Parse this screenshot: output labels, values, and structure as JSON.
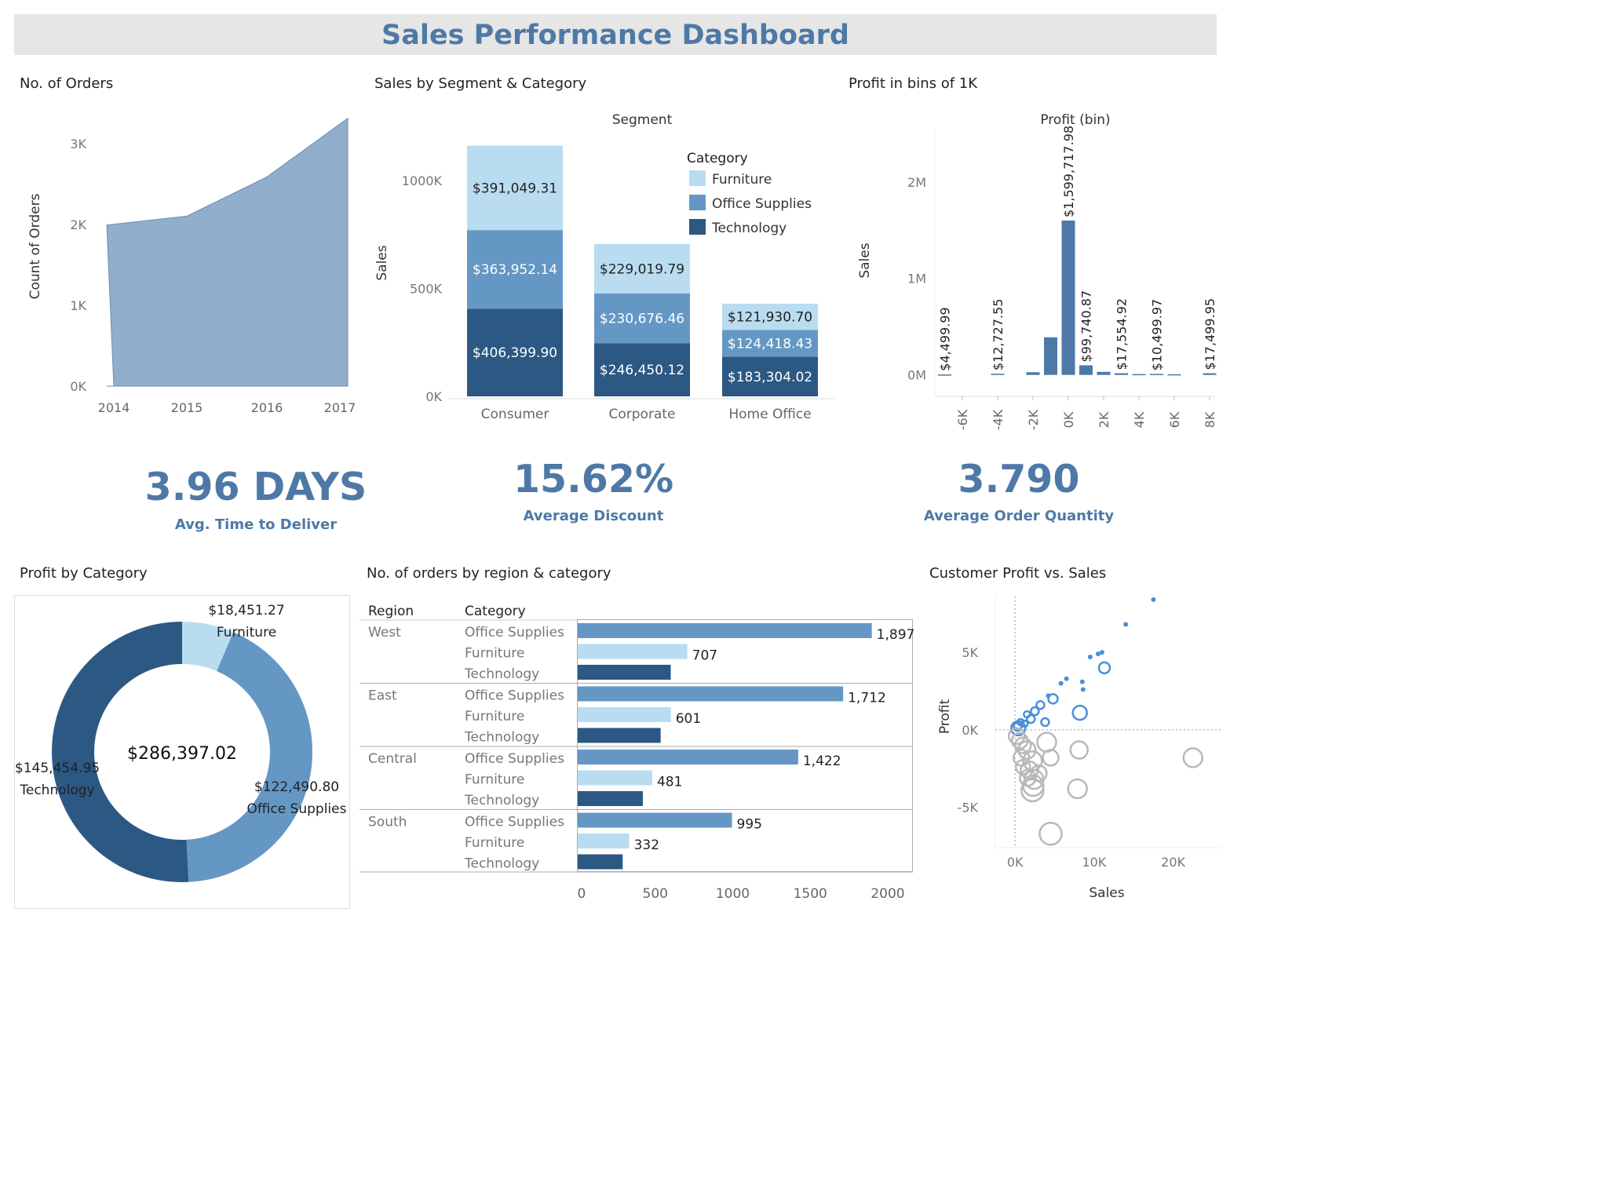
{
  "dashboard": {
    "title": "Sales Performance Dashboard",
    "colors": {
      "header_bg": "#e6e6e6",
      "accent": "#4e79a7",
      "furniture": "#b9dcf0",
      "office_supplies": "#6497c4",
      "technology": "#2c5884",
      "area": "#91aecd",
      "positive": "#4a90d9",
      "negative": "#b8b8b8"
    }
  },
  "kpis": {
    "delivery": {
      "value": "3.96 DAYS",
      "label": "Avg. Time to Deliver"
    },
    "discount": {
      "value": "15.62%",
      "label": "Average Discount"
    },
    "quantity": {
      "value": "3.790",
      "label": "Average Order Quantity"
    }
  },
  "chart_data": [
    {
      "id": "orders",
      "panel_title": "No. of Orders",
      "type": "area",
      "x": [
        "2014",
        "2015",
        "2016",
        "2017"
      ],
      "values": [
        1993,
        2102,
        2587,
        3312
      ],
      "ylabel": "Count of Orders",
      "ylim": [
        0,
        3300
      ],
      "y_ticks": [
        {
          "value": 0,
          "label": "0K"
        },
        {
          "value": 1000,
          "label": "1K"
        },
        {
          "value": 2000,
          "label": "2K"
        },
        {
          "value": 3000,
          "label": "3K"
        }
      ]
    },
    {
      "id": "segment",
      "panel_title": "Sales by Segment & Category",
      "type": "bar",
      "stacked": true,
      "title": "Segment",
      "ylabel": "Sales",
      "ylim": [
        0,
        1200000
      ],
      "y_ticks": [
        {
          "value": 0,
          "label": "0K"
        },
        {
          "value": 500000,
          "label": "500K"
        },
        {
          "value": 1000000,
          "label": "1000K"
        }
      ],
      "categories": [
        "Consumer",
        "Corporate",
        "Home Office"
      ],
      "legend_title": "Category",
      "legend_position": "top-right",
      "series": [
        {
          "name": "Technology",
          "color": "#2c5884",
          "values": [
            406399.9,
            246450.12,
            183304.02
          ],
          "labels": [
            "$406,399.90",
            "$246,450.12",
            "$183,304.02"
          ]
        },
        {
          "name": "Office Supplies",
          "color": "#6497c4",
          "values": [
            363952.14,
            230676.46,
            124418.43
          ],
          "labels": [
            "$363,952.14",
            "$230,676.46",
            "$124,418.43"
          ]
        },
        {
          "name": "Furniture",
          "color": "#b9dcf0",
          "values": [
            391049.31,
            229019.79,
            121930.7
          ],
          "labels": [
            "$391,049.31",
            "$229,019.79",
            "$121,930.70"
          ]
        }
      ]
    },
    {
      "id": "bins",
      "panel_title": "Profit in bins of 1K",
      "type": "bar",
      "title": "Profit (bin)",
      "ylabel": "Sales",
      "ylim": [
        -100000,
        2600000
      ],
      "y_ticks": [
        {
          "value": 0,
          "label": "0M"
        },
        {
          "value": 1000000,
          "label": "1M"
        },
        {
          "value": 2000000,
          "label": "2M"
        }
      ],
      "x_ticks": [
        {
          "value": -6,
          "label": "-6K"
        },
        {
          "value": -4,
          "label": "-4K"
        },
        {
          "value": -2,
          "label": "-2K"
        },
        {
          "value": 0,
          "label": "0K"
        },
        {
          "value": 2,
          "label": "2K"
        },
        {
          "value": 4,
          "label": "4K"
        },
        {
          "value": 6,
          "label": "6K"
        },
        {
          "value": 8,
          "label": "8K"
        }
      ],
      "bins": [
        {
          "x": -7,
          "value": 4499.99,
          "label": "$4,499.99"
        },
        {
          "x": -4,
          "value": 12727.55,
          "label": "$12,727.55"
        },
        {
          "x": -2,
          "value": 28000
        },
        {
          "x": -1,
          "value": 390000
        },
        {
          "x": 0,
          "value": 1599717.98,
          "label": "$1,599,717.98"
        },
        {
          "x": 1,
          "value": 99740.87,
          "label": "$99,740.87"
        },
        {
          "x": 2,
          "value": 32000
        },
        {
          "x": 3,
          "value": 17554.92,
          "label": "$17,554.92"
        },
        {
          "x": 4,
          "value": 9000
        },
        {
          "x": 5,
          "value": 10499.97,
          "label": "$10,499.97"
        },
        {
          "x": 6,
          "value": 7000
        },
        {
          "x": 8,
          "value": 17499.95,
          "label": "$17,499.95"
        }
      ]
    },
    {
      "id": "profit_cat",
      "panel_title": "Profit by Category",
      "type": "pie",
      "donut": true,
      "center_label": "$286,397.02",
      "slices": [
        {
          "name": "Furniture",
          "value": 18451.27,
          "label": "$18,451.27",
          "color": "#b9dcf0"
        },
        {
          "name": "Office Supplies",
          "value": 122490.8,
          "label": "$122,490.80",
          "color": "#6497c4"
        },
        {
          "name": "Technology",
          "value": 145454.95,
          "label": "$145,454.95",
          "color": "#2c5884"
        }
      ]
    },
    {
      "id": "region",
      "panel_title": "No. of orders by region & category",
      "type": "bar",
      "orientation": "horizontal",
      "col_headers": [
        "Region",
        "Category"
      ],
      "xlim": [
        0,
        2200
      ],
      "x_ticks": [
        0,
        500,
        1000,
        1500,
        2000
      ],
      "regions": [
        {
          "name": "West",
          "rows": [
            {
              "category": "Office Supplies",
              "value": 1897,
              "label": "1,897"
            },
            {
              "category": "Furniture",
              "value": 707,
              "label": "707"
            },
            {
              "category": "Technology",
              "value": 600
            }
          ]
        },
        {
          "name": "East",
          "rows": [
            {
              "category": "Office Supplies",
              "value": 1712,
              "label": "1,712"
            },
            {
              "category": "Furniture",
              "value": 601,
              "label": "601"
            },
            {
              "category": "Technology",
              "value": 535
            }
          ]
        },
        {
          "name": "Central",
          "rows": [
            {
              "category": "Office Supplies",
              "value": 1422,
              "label": "1,422"
            },
            {
              "category": "Furniture",
              "value": 481,
              "label": "481"
            },
            {
              "category": "Technology",
              "value": 420
            }
          ]
        },
        {
          "name": "South",
          "rows": [
            {
              "category": "Office Supplies",
              "value": 995,
              "label": "995"
            },
            {
              "category": "Furniture",
              "value": 332,
              "label": "332"
            },
            {
              "category": "Technology",
              "value": 290
            }
          ]
        }
      ]
    },
    {
      "id": "customers",
      "panel_title": "Customer Profit vs. Sales",
      "type": "scatter",
      "xlabel": "Sales",
      "ylabel": "Profit",
      "xlim": [
        -2500,
        26000
      ],
      "ylim": [
        -7600,
        8600
      ],
      "x_ticks": [
        {
          "value": 0,
          "label": "0K"
        },
        {
          "value": 10000,
          "label": "10K"
        },
        {
          "value": 20000,
          "label": "20K"
        }
      ],
      "y_ticks": [
        {
          "value": -5000,
          "label": "-5K"
        },
        {
          "value": 0,
          "label": "0K"
        },
        {
          "value": 5000,
          "label": "5K"
        }
      ],
      "points": [
        {
          "x": 17500,
          "y": 8400,
          "r": 2
        },
        {
          "x": 14000,
          "y": 6800,
          "r": 2
        },
        {
          "x": 11000,
          "y": 5000,
          "r": 2
        },
        {
          "x": 10500,
          "y": 4900,
          "r": 2
        },
        {
          "x": 9500,
          "y": 4700,
          "r": 2
        },
        {
          "x": 11300,
          "y": 4000,
          "r": 7
        },
        {
          "x": 8500,
          "y": 3100,
          "r": 2
        },
        {
          "x": 8600,
          "y": 2600,
          "r": 2
        },
        {
          "x": 6500,
          "y": 3300,
          "r": 2
        },
        {
          "x": 5800,
          "y": 3000,
          "r": 2
        },
        {
          "x": 4800,
          "y": 2000,
          "r": 6
        },
        {
          "x": 8200,
          "y": 1100,
          "r": 9
        },
        {
          "x": 4200,
          "y": 2200,
          "r": 2
        },
        {
          "x": 3200,
          "y": 1600,
          "r": 5
        },
        {
          "x": 2500,
          "y": 1200,
          "r": 5
        },
        {
          "x": 1500,
          "y": 1000,
          "r": 4
        },
        {
          "x": 700,
          "y": 500,
          "r": 4
        },
        {
          "x": 400,
          "y": 100,
          "r": 9
        },
        {
          "x": 1200,
          "y": 400,
          "r": 4
        },
        {
          "x": 2000,
          "y": 700,
          "r": 5
        },
        {
          "x": 3800,
          "y": 500,
          "r": 5
        },
        {
          "x": 300,
          "y": 200,
          "r": 5
        },
        {
          "x": 200,
          "y": -400,
          "r": 10
        },
        {
          "x": 600,
          "y": -700,
          "r": 10
        },
        {
          "x": 1000,
          "y": -1000,
          "r": 10
        },
        {
          "x": 1500,
          "y": -1300,
          "r": 11
        },
        {
          "x": 800,
          "y": -1800,
          "r": 10
        },
        {
          "x": 2200,
          "y": -2000,
          "r": 12
        },
        {
          "x": 1800,
          "y": -2600,
          "r": 11
        },
        {
          "x": 2400,
          "y": -3200,
          "r": 12
        },
        {
          "x": 2300,
          "y": -3600,
          "r": 13
        },
        {
          "x": 2200,
          "y": -3900,
          "r": 14
        },
        {
          "x": 1600,
          "y": -3100,
          "r": 10
        },
        {
          "x": 4500,
          "y": -1800,
          "r": 10
        },
        {
          "x": 4000,
          "y": -800,
          "r": 12
        },
        {
          "x": 8100,
          "y": -1300,
          "r": 11
        },
        {
          "x": 7900,
          "y": -3800,
          "r": 12
        },
        {
          "x": 22500,
          "y": -1800,
          "r": 12
        },
        {
          "x": 4500,
          "y": -6700,
          "r": 14
        },
        {
          "x": 3000,
          "y": -2800,
          "r": 10
        },
        {
          "x": 1000,
          "y": -2400,
          "r": 9
        }
      ]
    }
  ]
}
